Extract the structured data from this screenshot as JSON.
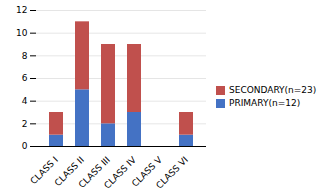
{
  "chart_data": {
    "type": "bar",
    "stacked": true,
    "categories": [
      "CLASS I",
      "CLASS II",
      "CLASS III",
      "CLASS IV",
      "CLASS V",
      "CLASS VI"
    ],
    "series": [
      {
        "name": "PRIMARY(n=12)",
        "color": "#4472C4",
        "values": [
          1,
          5,
          2,
          3,
          0,
          1
        ]
      },
      {
        "name": "SECONDARY(n=23)",
        "color": "#C0504D",
        "values": [
          2,
          6,
          7,
          6,
          0,
          2
        ]
      }
    ],
    "ylim": [
      0,
      12
    ],
    "yticks": [
      0,
      2,
      4,
      6,
      8,
      10,
      12
    ],
    "grid": true,
    "legend": "right"
  }
}
